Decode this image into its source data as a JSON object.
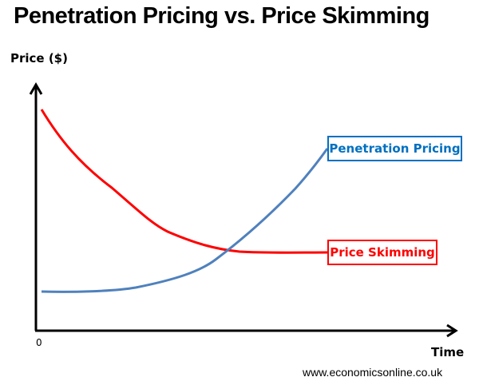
{
  "title": "Penetration Pricing vs. Price Skimming",
  "axes": {
    "y_label": "Price ($)",
    "x_label": "Time",
    "origin_label": "0"
  },
  "curves": [
    {
      "name": "Penetration Pricing",
      "color": "#4f81bd",
      "label_color": "#0070c0",
      "trend": "rising from low price"
    },
    {
      "name": "Price Skimming",
      "color": "#ff0000",
      "label_color": "#ff0000",
      "trend": "falling from high price"
    }
  ],
  "source": "www.economicsonline.co.uk"
}
